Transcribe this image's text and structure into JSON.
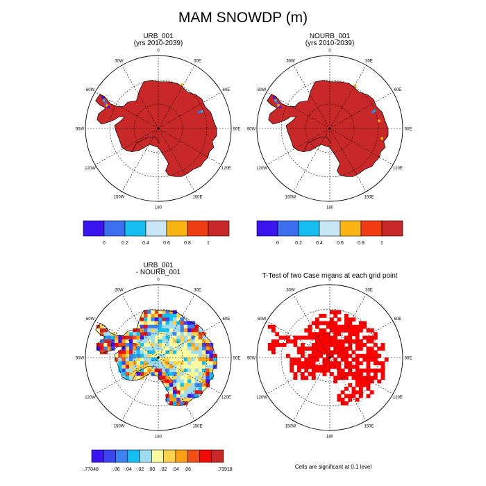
{
  "title": "MAM SNOWDP (m)",
  "lon_labels": [
    "0",
    "30E",
    "60E",
    "90E",
    "120E",
    "150E",
    "180",
    "150W",
    "120W",
    "90W",
    "60W",
    "30W"
  ],
  "colors": {
    "snow_full": "#c82828",
    "coast": "#000000",
    "ttest_red": "#ff0000",
    "land_white": "#ffffff"
  },
  "panels": [
    {
      "title": "URB_001",
      "subtitle": "(yrs 2010-2039)"
    },
    {
      "title": "NOURB_001",
      "subtitle": "(yrs 2010-2039)"
    },
    {
      "title": "URB_001",
      "subtitle": "- NOURB_001"
    },
    {
      "title": "T-Test of two Case means at each grid point",
      "subtitle": ""
    }
  ],
  "colorbar_abs": {
    "colors": [
      "#3c14f0",
      "#3c6ef0",
      "#14bef0",
      "#c8e6f5",
      "#fab414",
      "#f03c14",
      "#c82828"
    ],
    "labels": [
      "0",
      "0.2",
      "0.4",
      "0.6",
      "0.8",
      "1"
    ]
  },
  "colorbar_diff": {
    "colors": [
      "#3c14f0",
      "#3c46f0",
      "#3c82f0",
      "#14bef0",
      "#a0dcf0",
      "#fafaa0",
      "#fad250",
      "#faa014",
      "#f05014",
      "#f00a0a",
      "#c82828"
    ],
    "labels": [
      "-.77048",
      "-.06",
      "-.04",
      "-.02",
      ".00",
      ".02",
      ".04",
      ".06",
      ".73918"
    ]
  },
  "note": "Cells are significant at 0.1 level"
}
